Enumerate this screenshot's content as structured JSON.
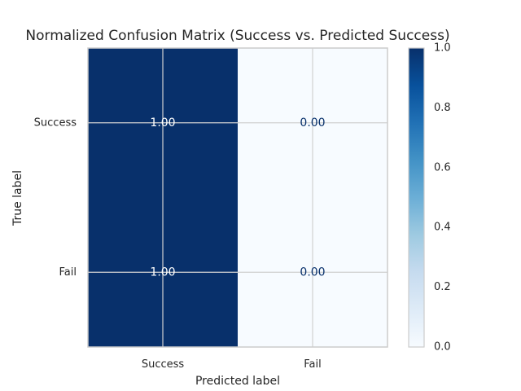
{
  "chart_data": {
    "type": "heatmap",
    "title": "Normalized Confusion Matrix (Success vs. Predicted Success)",
    "xlabel": "Predicted label",
    "ylabel": "True label",
    "x_categories": [
      "Success",
      "Fail"
    ],
    "y_categories": [
      "Success",
      "Fail"
    ],
    "values": [
      [
        1.0,
        0.0
      ],
      [
        1.0,
        0.0
      ]
    ],
    "cell_labels": [
      [
        "1.00",
        "0.00"
      ],
      [
        "1.00",
        "0.00"
      ]
    ],
    "colormap": "Blues",
    "color_range": [
      0.0,
      1.0
    ],
    "colorbar_ticks": [
      {
        "value": 0.0,
        "label": "0.0"
      },
      {
        "value": 0.2,
        "label": "0.2"
      },
      {
        "value": 0.4,
        "label": "0.4"
      },
      {
        "value": 0.6,
        "label": "0.6"
      },
      {
        "value": 0.8,
        "label": "0.8"
      },
      {
        "value": 1.0,
        "label": "1.0"
      }
    ],
    "grid": true,
    "colors": {
      "high": "#08306b",
      "low": "#f7fbff",
      "text_on_dark": "#ffffff",
      "text_on_light": "#08306b",
      "grid": "#d0d0d0",
      "frame": "#cccccc"
    }
  }
}
